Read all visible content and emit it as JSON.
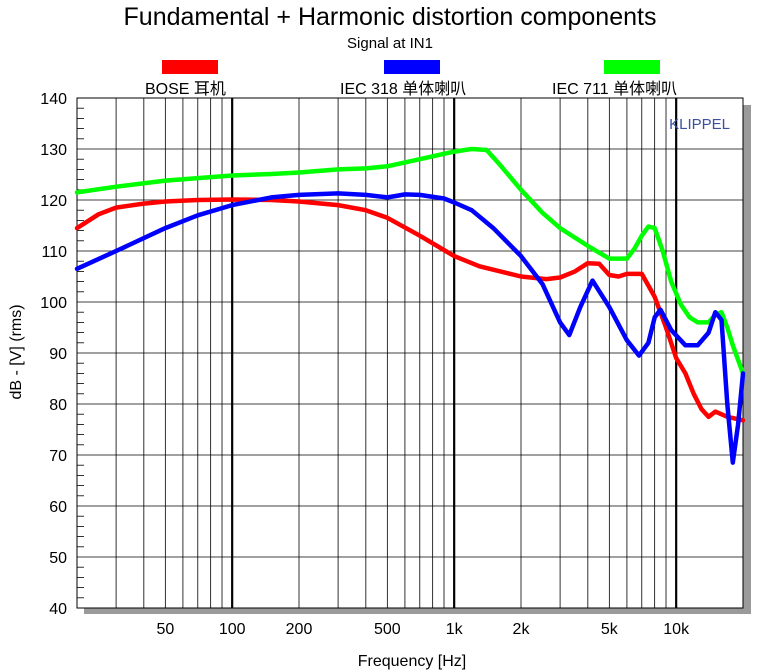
{
  "chart_data": {
    "type": "line",
    "title": "Fundamental + Harmonic distortion components",
    "subtitle": "Signal at IN1",
    "xlabel": "Frequency [Hz]",
    "ylabel": "dB - [V]  (rms)",
    "x_scale": "log",
    "xlim": [
      20,
      20000
    ],
    "ylim": [
      40,
      140
    ],
    "grid": true,
    "legend_position": "top",
    "brand": "KLIPPEL",
    "x_ticks": [
      {
        "value": 50,
        "label": "50"
      },
      {
        "value": 100,
        "label": "100"
      },
      {
        "value": 200,
        "label": "200"
      },
      {
        "value": 500,
        "label": "500"
      },
      {
        "value": 1000,
        "label": "1k"
      },
      {
        "value": 2000,
        "label": "2k"
      },
      {
        "value": 5000,
        "label": "5k"
      },
      {
        "value": 10000,
        "label": "10k"
      }
    ],
    "y_ticks": [
      40,
      50,
      60,
      70,
      80,
      90,
      100,
      110,
      120,
      130,
      140
    ],
    "series": [
      {
        "name": "BOSE 耳机",
        "color": "#ff0000",
        "x": [
          20,
          25,
          30,
          40,
          50,
          70,
          100,
          150,
          200,
          300,
          400,
          500,
          700,
          1000,
          1300,
          2000,
          2600,
          3000,
          3500,
          4000,
          4500,
          5000,
          5500,
          6000,
          7000,
          8000,
          9000,
          10000,
          11000,
          12000,
          13000,
          14000,
          15000,
          17000,
          20000
        ],
        "y": [
          114.5,
          117.2,
          118.5,
          119.3,
          119.7,
          120.0,
          120.1,
          120.0,
          119.7,
          119.0,
          118.0,
          116.5,
          113.0,
          109.0,
          107.0,
          105.0,
          104.5,
          104.8,
          106.0,
          107.6,
          107.5,
          105.3,
          105.0,
          105.5,
          105.5,
          101.0,
          95.0,
          89.0,
          86.0,
          82.0,
          79.0,
          77.5,
          78.5,
          77.5,
          76.8
        ]
      },
      {
        "name": "IEC 318 单体喇叭",
        "color": "#0000ff",
        "x": [
          20,
          30,
          50,
          70,
          100,
          150,
          200,
          300,
          400,
          500,
          550,
          600,
          700,
          900,
          1000,
          1200,
          1500,
          2000,
          2500,
          3000,
          3300,
          3700,
          4200,
          5000,
          6000,
          6800,
          7500,
          8000,
          8500,
          9500,
          11000,
          12500,
          14000,
          15000,
          16000,
          17000,
          18000,
          19000,
          20000
        ],
        "y": [
          106.5,
          110.0,
          114.5,
          117.0,
          119.0,
          120.5,
          121.0,
          121.3,
          121.0,
          120.5,
          120.8,
          121.1,
          121.0,
          120.3,
          119.5,
          118.0,
          114.5,
          109.0,
          103.5,
          96.0,
          93.5,
          99.0,
          104.2,
          99.0,
          92.5,
          89.5,
          92.0,
          97.0,
          98.5,
          94.5,
          91.5,
          91.5,
          94.0,
          98.0,
          96.5,
          80.0,
          68.5,
          76.0,
          86.0
        ]
      },
      {
        "name": "IEC  711   单体喇叭",
        "color": "#00ff00",
        "x": [
          20,
          30,
          50,
          70,
          100,
          150,
          200,
          300,
          400,
          500,
          700,
          1000,
          1200,
          1400,
          1600,
          2000,
          2500,
          3000,
          4000,
          5000,
          6000,
          6500,
          7000,
          7500,
          8000,
          8700,
          9500,
          10500,
          11500,
          12500,
          14000,
          15000,
          16000,
          17000,
          18000,
          20000
        ],
        "y": [
          121.5,
          122.6,
          123.8,
          124.3,
          124.8,
          125.1,
          125.4,
          126.0,
          126.2,
          126.6,
          128.0,
          129.5,
          130.0,
          129.8,
          127.0,
          122.0,
          117.5,
          114.5,
          111.0,
          108.5,
          108.5,
          110.5,
          113.0,
          114.8,
          114.5,
          110.0,
          104.0,
          99.5,
          97.0,
          96.0,
          96.0,
          97.5,
          98.0,
          95.0,
          91.5,
          86.0
        ]
      }
    ]
  }
}
